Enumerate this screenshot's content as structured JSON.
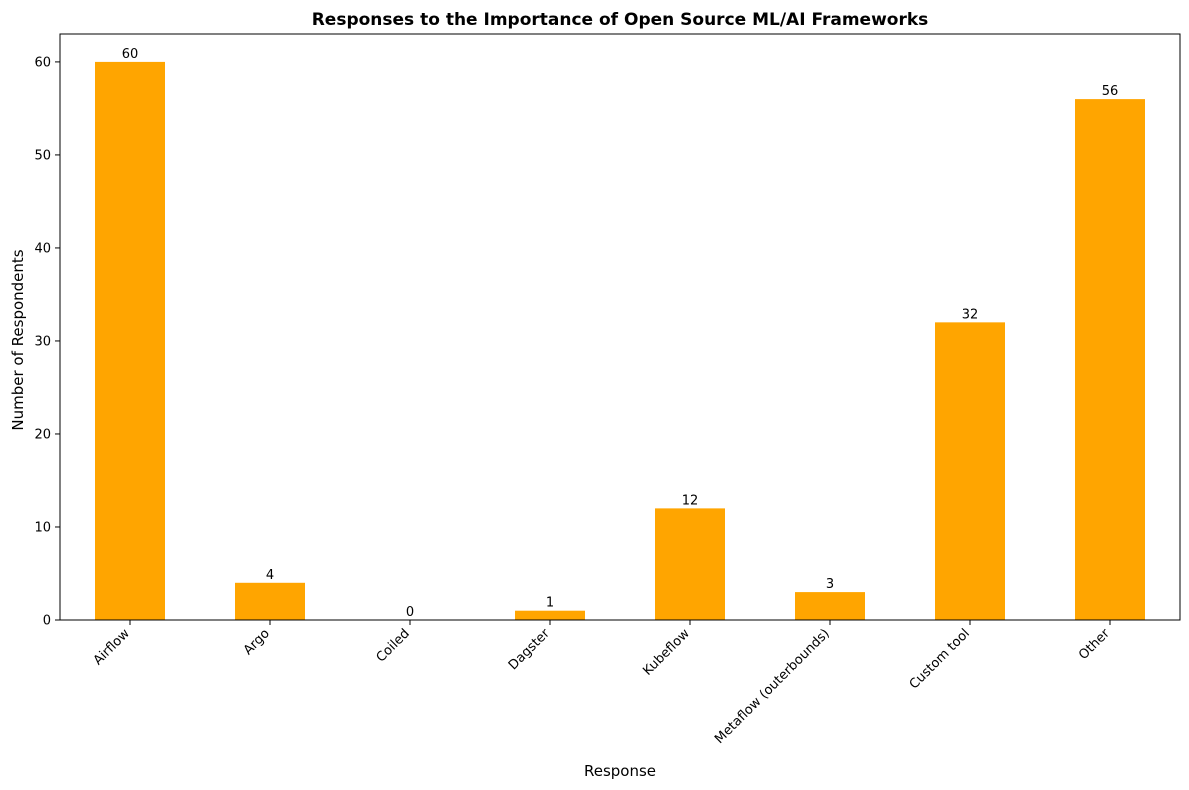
{
  "chart_data": {
    "type": "bar",
    "title": "Responses to the Importance of Open Source ML/AI Frameworks",
    "xlabel": "Response",
    "ylabel": "Number of Respondents",
    "categories": [
      "Airflow",
      "Argo",
      "Coiled",
      "Dagster",
      "Kubeflow",
      "Metaflow (outerbounds)",
      "Custom tool",
      "Other"
    ],
    "values": [
      60,
      4,
      0,
      1,
      12,
      3,
      32,
      56
    ],
    "ylim": [
      0,
      63
    ],
    "yticks": [
      0,
      10,
      20,
      30,
      40,
      50,
      60
    ],
    "bar_color": "#FFA500",
    "grid": false,
    "legend": false
  }
}
